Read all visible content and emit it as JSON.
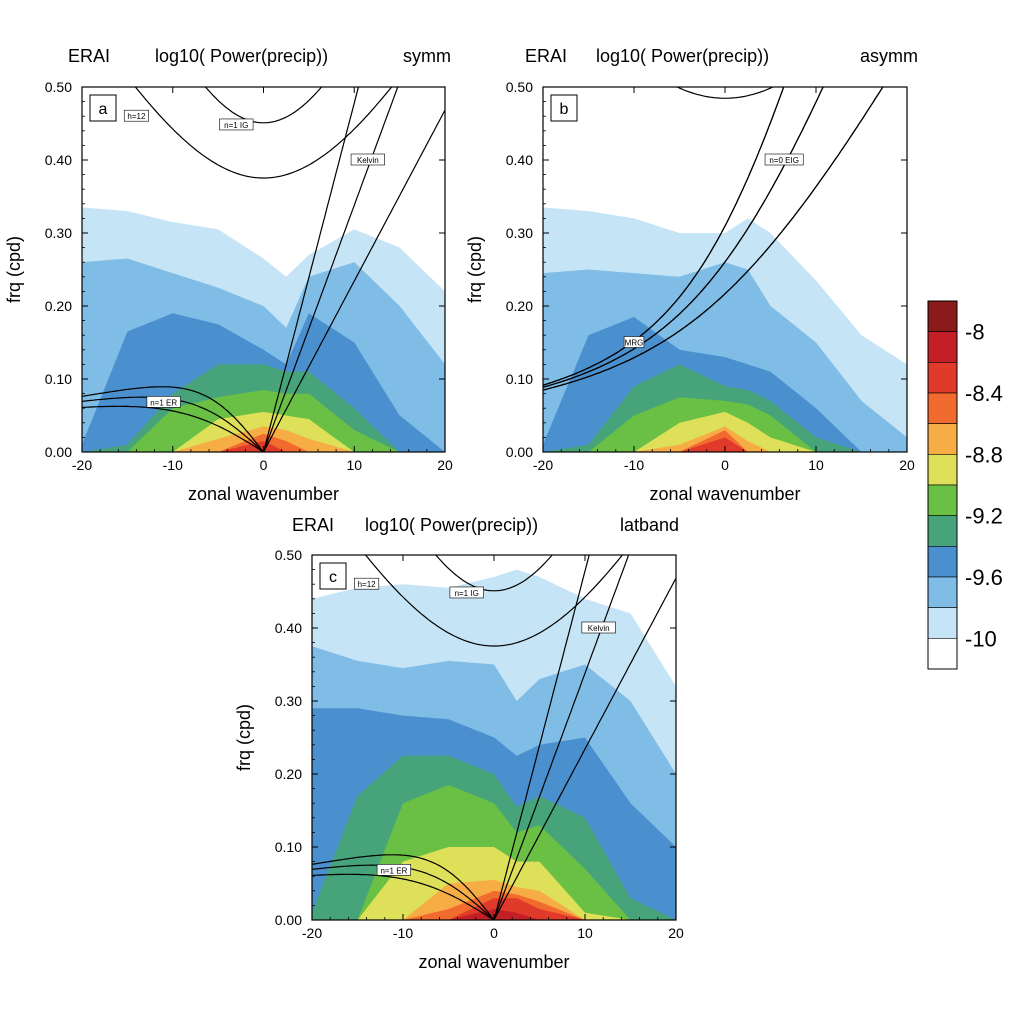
{
  "colorbar": {
    "labels": [
      "-8",
      "-8.4",
      "-8.8",
      "-9.2",
      "-9.6",
      "-10"
    ],
    "colors": [
      "#8b1a1a",
      "#c41e26",
      "#e03a2a",
      "#f26b2e",
      "#f7ad45",
      "#dde058",
      "#6abf45",
      "#47a37a",
      "#4a8fce",
      "#7fbce6",
      "#c5e4f5",
      "#ffffff"
    ]
  },
  "chart_data": [
    {
      "type": "heatmap",
      "panel_label": "a",
      "title_left": "ERAI",
      "title_center": "log10( Power(precip))",
      "title_right": "symm",
      "xlabel": "zonal wavenumber",
      "ylabel": "frq (cpd)",
      "xlim": [
        -20,
        20
      ],
      "ylim": [
        0,
        0.5
      ],
      "xticks": [
        "-20",
        "-10",
        "0",
        "10",
        "20"
      ],
      "yticks": [
        "0.00",
        "0.10",
        "0.20",
        "0.30",
        "0.40",
        "0.50"
      ],
      "levels": [
        -10,
        -9.8,
        -9.6,
        -9.4,
        -9.2,
        -9.0,
        -8.8,
        -8.6,
        -8.4,
        -8.2,
        -8.0
      ],
      "contour_boundaries_freq": [
        {
          "level": -10.0,
          "x": [
            -20,
            -15,
            -10,
            -5,
            0,
            2.5,
            5,
            10,
            15,
            20
          ],
          "y": [
            0.335,
            0.33,
            0.315,
            0.305,
            0.265,
            0.24,
            0.27,
            0.305,
            0.28,
            0.22
          ]
        },
        {
          "level": -9.8,
          "x": [
            -20,
            -15,
            -10,
            -5,
            0,
            2.5,
            5,
            10,
            15,
            20
          ],
          "y": [
            0.26,
            0.265,
            0.245,
            0.225,
            0.2,
            0.17,
            0.24,
            0.26,
            0.2,
            0.12
          ]
        },
        {
          "level": -9.6,
          "x": [
            -20,
            -15,
            -10,
            -5,
            0,
            2.5,
            5,
            10,
            15,
            20
          ],
          "y": [
            0.01,
            0.165,
            0.19,
            0.175,
            0.14,
            0.12,
            0.19,
            0.15,
            0.05,
            0.0
          ]
        },
        {
          "level": -9.4,
          "x": [
            -20,
            -15,
            -10,
            -5,
            0,
            2.5,
            5,
            10,
            15,
            20
          ],
          "y": [
            0.0,
            0.01,
            0.08,
            0.12,
            0.12,
            0.11,
            0.11,
            0.06,
            0.0,
            0.0
          ]
        },
        {
          "level": -9.2,
          "x": [
            -20,
            -15,
            -10,
            -5,
            0,
            2.5,
            5,
            10,
            15,
            20
          ],
          "y": [
            0.0,
            0.0,
            0.06,
            0.075,
            0.085,
            0.08,
            0.08,
            0.03,
            0.0,
            0.0
          ]
        },
        {
          "level": -9.0,
          "x": [
            -20,
            -15,
            -10,
            -5,
            0,
            2.5,
            5,
            10,
            15,
            20
          ],
          "y": [
            0.0,
            0.0,
            0.0,
            0.045,
            0.055,
            0.05,
            0.045,
            0.0,
            0.0,
            0.0
          ]
        },
        {
          "level": -8.8,
          "x": [
            -20,
            -15,
            -10,
            -5,
            0,
            2.5,
            5,
            10,
            15,
            20
          ],
          "y": [
            0.0,
            0.0,
            0.0,
            0.018,
            0.035,
            0.03,
            0.018,
            0.0,
            0.0,
            0.0
          ]
        },
        {
          "level": -8.6,
          "x": [
            -20,
            -15,
            -10,
            -5,
            0,
            2.5,
            5,
            10,
            15,
            20
          ],
          "y": [
            0.0,
            0.0,
            0.0,
            0.0,
            0.025,
            0.015,
            0.0,
            0.0,
            0.0,
            0.0
          ]
        },
        {
          "level": -8.4,
          "x": [
            -20,
            -15,
            -10,
            -5,
            0,
            2.5,
            5,
            10,
            15,
            20
          ],
          "y": [
            0.0,
            0.0,
            0.0,
            0.0,
            0.015,
            0.0,
            0.0,
            0.0,
            0.0,
            0.0
          ]
        }
      ],
      "dispersion_curves": [
        {
          "family": "kelvin",
          "h": [
            12,
            25,
            50
          ],
          "label": "Kelvin",
          "label_at": [
            11.5,
            0.4
          ]
        },
        {
          "family": "er",
          "n": 1,
          "h": [
            12,
            25,
            50
          ],
          "label": "n=1 ER",
          "label_at": [
            -11,
            0.068
          ]
        },
        {
          "family": "ig",
          "n": 1,
          "h": [
            12,
            25,
            50
          ],
          "label": "n=1 IG",
          "label_at": [
            -3,
            0.448
          ]
        }
      ],
      "annotations": [
        {
          "text": "h=12",
          "at": [
            -14,
            0.46
          ]
        }
      ]
    },
    {
      "type": "heatmap",
      "panel_label": "b",
      "title_left": "ERAI",
      "title_center": "log10( Power(precip))",
      "title_right": "asymm",
      "xlabel": "zonal wavenumber",
      "ylabel": "frq (cpd)",
      "xlim": [
        -20,
        20
      ],
      "ylim": [
        0,
        0.5
      ],
      "xticks": [
        "-20",
        "-10",
        "0",
        "10",
        "20"
      ],
      "yticks": [
        "0.00",
        "0.10",
        "0.20",
        "0.30",
        "0.40",
        "0.50"
      ],
      "levels": [
        -10,
        -9.8,
        -9.6,
        -9.4,
        -9.2,
        -9.0,
        -8.8,
        -8.6,
        -8.4,
        -8.2,
        -8.0
      ],
      "contour_boundaries_freq": [
        {
          "level": -10.0,
          "x": [
            -20,
            -15,
            -10,
            -5,
            0,
            2.5,
            5,
            10,
            15,
            20
          ],
          "y": [
            0.335,
            0.33,
            0.32,
            0.3,
            0.3,
            0.32,
            0.3,
            0.235,
            0.16,
            0.12
          ]
        },
        {
          "level": -9.8,
          "x": [
            -20,
            -15,
            -10,
            -5,
            0,
            2.5,
            5,
            10,
            15,
            20
          ],
          "y": [
            0.245,
            0.25,
            0.245,
            0.24,
            0.26,
            0.25,
            0.2,
            0.15,
            0.07,
            0.02
          ]
        },
        {
          "level": -9.6,
          "x": [
            -20,
            -15,
            -10,
            -5,
            0,
            2.5,
            5,
            10,
            15,
            20
          ],
          "y": [
            0.01,
            0.16,
            0.185,
            0.14,
            0.13,
            0.12,
            0.11,
            0.06,
            0.0,
            0.0
          ]
        },
        {
          "level": -9.4,
          "x": [
            -20,
            -15,
            -10,
            -5,
            0,
            2.5,
            5,
            10,
            15,
            20
          ],
          "y": [
            0.0,
            0.01,
            0.09,
            0.12,
            0.09,
            0.085,
            0.07,
            0.02,
            0.0,
            0.0
          ]
        },
        {
          "level": -9.2,
          "x": [
            -20,
            -15,
            -10,
            -5,
            0,
            2.5,
            5,
            10,
            15,
            20
          ],
          "y": [
            0.0,
            0.0,
            0.05,
            0.075,
            0.07,
            0.065,
            0.05,
            0.0,
            0.0,
            0.0
          ]
        },
        {
          "level": -9.0,
          "x": [
            -20,
            -15,
            -10,
            -5,
            0,
            2.5,
            5,
            10,
            15,
            20
          ],
          "y": [
            0.0,
            0.0,
            0.0,
            0.04,
            0.055,
            0.04,
            0.02,
            0.0,
            0.0,
            0.0
          ]
        },
        {
          "level": -8.8,
          "x": [
            -20,
            -15,
            -10,
            -5,
            0,
            2.5,
            5,
            10,
            15,
            20
          ],
          "y": [
            0.0,
            0.0,
            0.0,
            0.01,
            0.035,
            0.015,
            0.0,
            0.0,
            0.0,
            0.0
          ]
        },
        {
          "level": -8.6,
          "x": [
            -20,
            -15,
            -10,
            -5,
            0,
            2.5,
            5,
            10,
            15,
            20
          ],
          "y": [
            0.0,
            0.0,
            0.0,
            0.0,
            0.03,
            0.0,
            0.0,
            0.0,
            0.0,
            0.0
          ]
        },
        {
          "level": -8.4,
          "x": [
            -20,
            -15,
            -10,
            -5,
            0,
            2.5,
            5,
            10,
            15,
            20
          ],
          "y": [
            0.0,
            0.0,
            0.0,
            0.0,
            0.02,
            0.0,
            0.0,
            0.0,
            0.0,
            0.0
          ]
        }
      ],
      "dispersion_curves": [
        {
          "family": "eig",
          "n": 0,
          "h": [
            12,
            25,
            50
          ],
          "label": "n=0 EIG",
          "label_at": [
            6.5,
            0.4
          ]
        },
        {
          "family": "mrg",
          "h": [
            12,
            25,
            50
          ],
          "label": "MRG",
          "label_at": [
            -10,
            0.15
          ]
        },
        {
          "family": "ig",
          "n": 2,
          "h": [
            12,
            25,
            50
          ],
          "label": "",
          "label_at": null
        }
      ],
      "annotations": []
    },
    {
      "type": "heatmap",
      "panel_label": "c",
      "title_left": "ERAI",
      "title_center": "log10( Power(precip))",
      "title_right": "latband",
      "xlabel": "zonal wavenumber",
      "ylabel": "frq (cpd)",
      "xlim": [
        -20,
        20
      ],
      "ylim": [
        0,
        0.5
      ],
      "xticks": [
        "-20",
        "-10",
        "0",
        "10",
        "20"
      ],
      "yticks": [
        "0.00",
        "0.10",
        "0.20",
        "0.30",
        "0.40",
        "0.50"
      ],
      "levels": [
        -10,
        -9.8,
        -9.6,
        -9.4,
        -9.2,
        -9.0,
        -8.8,
        -8.6,
        -8.4,
        -8.2,
        -8.0
      ],
      "contour_boundaries_freq": [
        {
          "level": -10.0,
          "x": [
            -20,
            -15,
            -10,
            -5,
            0,
            2.5,
            5,
            10,
            15,
            20
          ],
          "y": [
            0.44,
            0.455,
            0.46,
            0.455,
            0.47,
            0.48,
            0.47,
            0.44,
            0.42,
            0.32
          ]
        },
        {
          "level": -9.8,
          "x": [
            -20,
            -15,
            -10,
            -5,
            0,
            2.5,
            5,
            10,
            15,
            20
          ],
          "y": [
            0.375,
            0.355,
            0.345,
            0.355,
            0.35,
            0.3,
            0.33,
            0.35,
            0.3,
            0.2
          ]
        },
        {
          "level": -9.6,
          "x": [
            -20,
            -15,
            -10,
            -5,
            0,
            2.5,
            5,
            10,
            15,
            20
          ],
          "y": [
            0.29,
            0.29,
            0.28,
            0.275,
            0.25,
            0.225,
            0.24,
            0.25,
            0.16,
            0.1
          ]
        },
        {
          "level": -9.4,
          "x": [
            -20,
            -15,
            -10,
            -5,
            0,
            2.5,
            5,
            10,
            15,
            20
          ],
          "y": [
            0.01,
            0.17,
            0.225,
            0.225,
            0.2,
            0.155,
            0.17,
            0.14,
            0.03,
            0.0
          ]
        },
        {
          "level": -9.2,
          "x": [
            -20,
            -15,
            -10,
            -5,
            0,
            2.5,
            5,
            10,
            15,
            20
          ],
          "y": [
            0.0,
            0.0,
            0.16,
            0.185,
            0.16,
            0.12,
            0.13,
            0.07,
            0.0,
            0.0
          ]
        },
        {
          "level": -9.0,
          "x": [
            -20,
            -15,
            -10,
            -5,
            0,
            2.5,
            5,
            10,
            15,
            20
          ],
          "y": [
            0.0,
            0.0,
            0.08,
            0.1,
            0.1,
            0.08,
            0.08,
            0.01,
            0.0,
            0.0
          ]
        },
        {
          "level": -8.8,
          "x": [
            -20,
            -15,
            -10,
            -5,
            0,
            2.5,
            5,
            10,
            15,
            20
          ],
          "y": [
            0.0,
            0.0,
            0.0,
            0.05,
            0.055,
            0.045,
            0.04,
            0.0,
            0.0,
            0.0
          ]
        },
        {
          "level": -8.6,
          "x": [
            -20,
            -15,
            -10,
            -5,
            0,
            2.5,
            5,
            10,
            15,
            20
          ],
          "y": [
            0.0,
            0.0,
            0.0,
            0.015,
            0.04,
            0.035,
            0.025,
            0.0,
            0.0,
            0.0
          ]
        },
        {
          "level": -8.4,
          "x": [
            -20,
            -15,
            -10,
            -5,
            0,
            2.5,
            5,
            10,
            15,
            20
          ],
          "y": [
            0.0,
            0.0,
            0.0,
            0.0,
            0.03,
            0.03,
            0.015,
            0.0,
            0.0,
            0.0
          ]
        },
        {
          "level": -8.2,
          "x": [
            -20,
            -15,
            -10,
            -5,
            0,
            2.5,
            5,
            10,
            15,
            20
          ],
          "y": [
            0.0,
            0.0,
            0.0,
            0.0,
            0.015,
            0.01,
            0.0,
            0.0,
            0.0,
            0.0
          ]
        }
      ],
      "dispersion_curves": [
        {
          "family": "kelvin",
          "h": [
            12,
            25,
            50
          ],
          "label": "Kelvin",
          "label_at": [
            11.5,
            0.4
          ]
        },
        {
          "family": "er",
          "n": 1,
          "h": [
            12,
            25,
            50
          ],
          "label": "n=1 ER",
          "label_at": [
            -11,
            0.068
          ]
        },
        {
          "family": "ig",
          "n": 1,
          "h": [
            12,
            25,
            50
          ],
          "label": "n=1 IG",
          "label_at": [
            -3,
            0.448
          ]
        }
      ],
      "annotations": [
        {
          "text": "h=12",
          "at": [
            -14,
            0.46
          ]
        }
      ]
    }
  ]
}
